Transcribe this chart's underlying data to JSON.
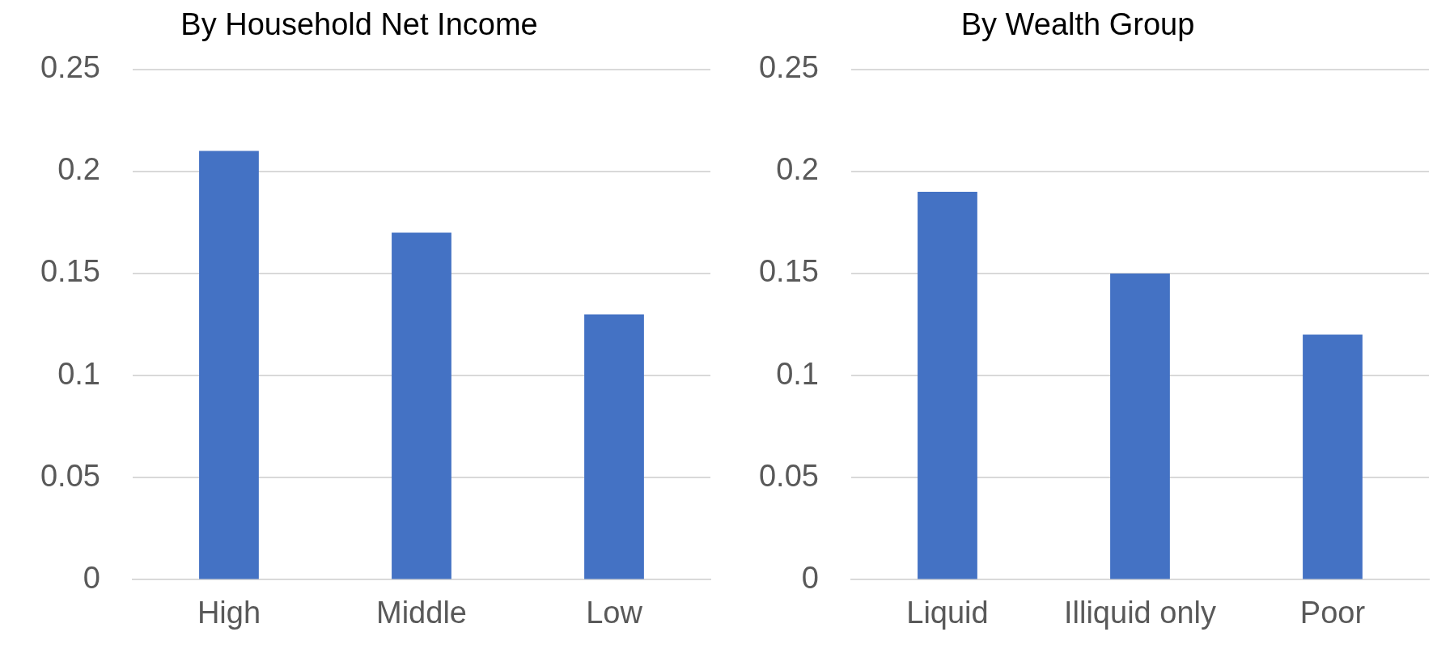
{
  "chart_data": [
    {
      "type": "bar",
      "title": "By Household Net Income",
      "categories": [
        "High",
        "Middle",
        "Low"
      ],
      "values": [
        0.21,
        0.17,
        0.13
      ],
      "color": "#4472c4",
      "ylim": [
        0,
        0.25
      ],
      "yticks": [
        0,
        0.05,
        0.1,
        0.15,
        0.2,
        0.25
      ],
      "grid": "y",
      "legend": false
    },
    {
      "type": "bar",
      "title": "By Wealth Group",
      "categories": [
        "Liquid",
        "Illiquid only",
        "Poor"
      ],
      "values": [
        0.19,
        0.15,
        0.12
      ],
      "color": "#4472c4",
      "ylim": [
        0,
        0.25
      ],
      "yticks": [
        0,
        0.05,
        0.1,
        0.15,
        0.2,
        0.25
      ],
      "grid": "y",
      "legend": false
    }
  ]
}
